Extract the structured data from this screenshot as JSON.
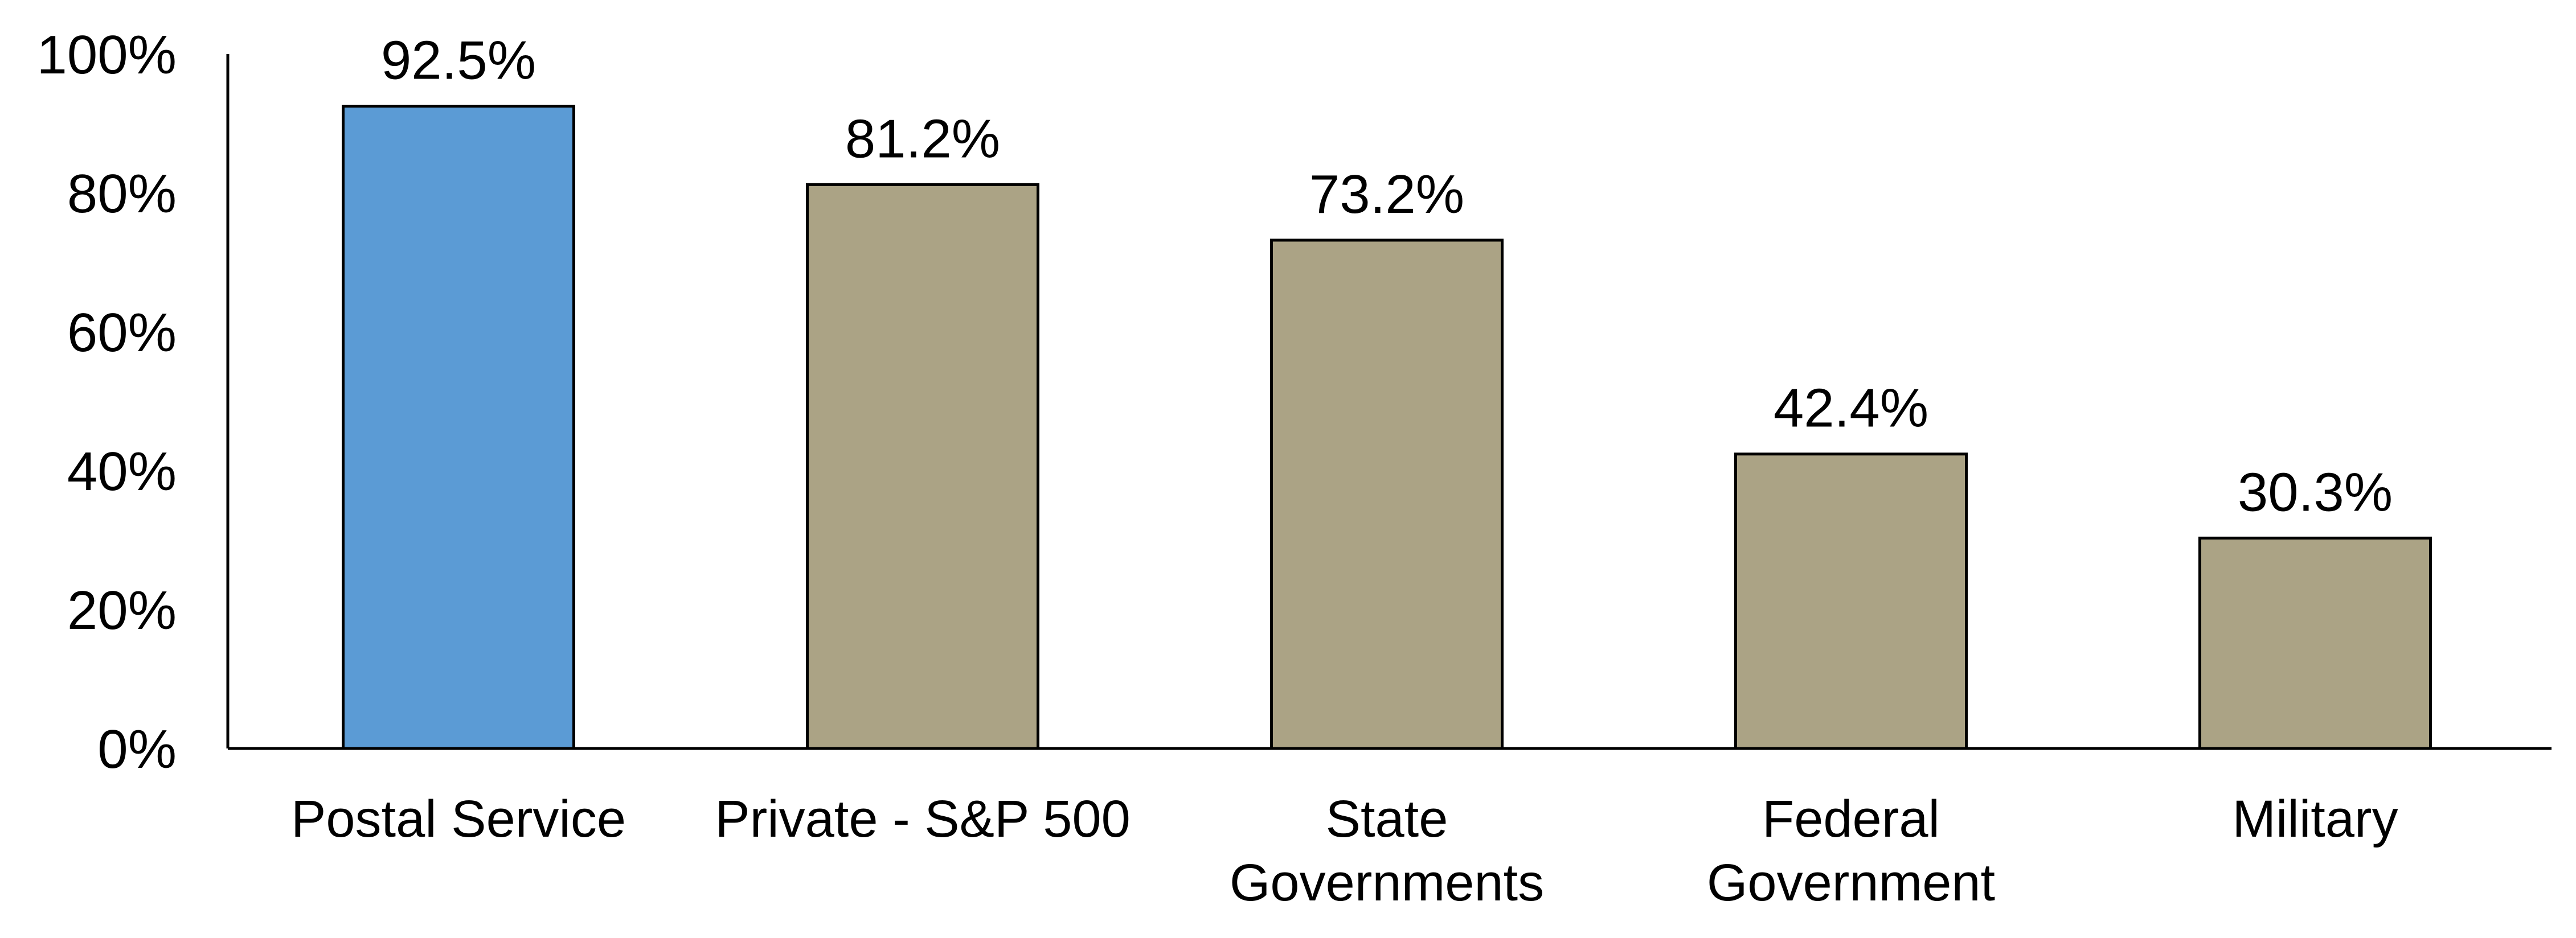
{
  "chart_data": {
    "type": "bar",
    "categories": [
      [
        "Postal Service"
      ],
      [
        "Private - S&P 500"
      ],
      [
        "State",
        "Governments"
      ],
      [
        "Federal",
        "Government"
      ],
      [
        "Military"
      ]
    ],
    "values": [
      92.5,
      81.2,
      73.2,
      42.4,
      30.3
    ],
    "data_labels": [
      "92.5%",
      "81.2%",
      "73.2%",
      "42.4%",
      "30.3%"
    ],
    "yticks": [
      0,
      20,
      40,
      60,
      80,
      100
    ],
    "ytick_labels": [
      "0%",
      "20%",
      "40%",
      "60%",
      "80%",
      "100%"
    ],
    "ylim": [
      0,
      100
    ],
    "title": "",
    "xlabel": "",
    "ylabel": "",
    "grid": false,
    "legend": "none",
    "colors": {
      "highlight": "#5B9BD5",
      "default": "#ABA385",
      "outline": "#000000",
      "axis": "#000000"
    },
    "highlight_index": 0
  }
}
